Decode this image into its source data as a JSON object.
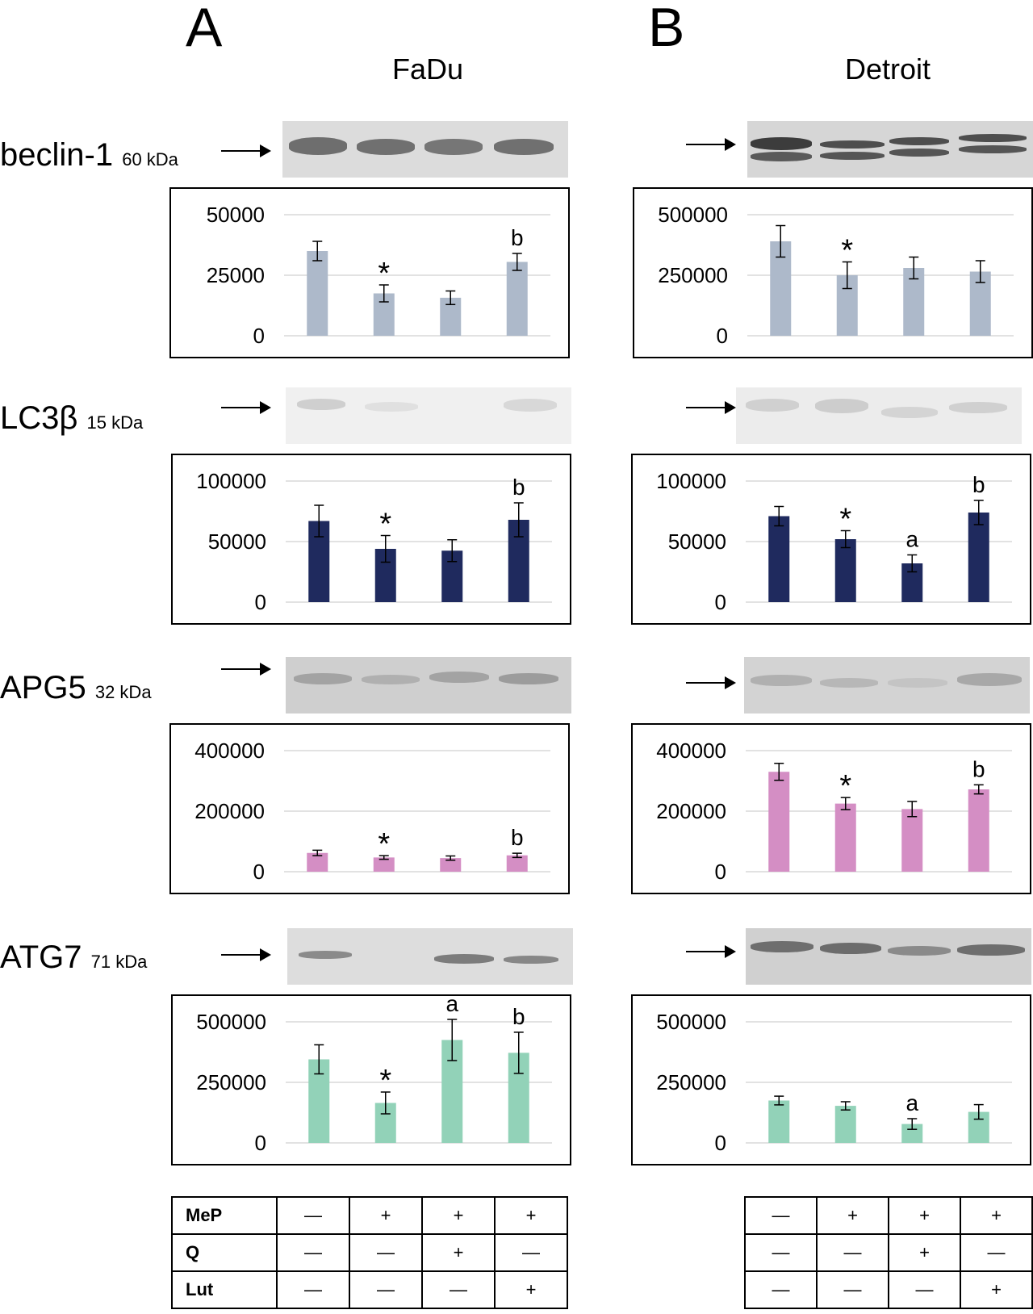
{
  "panels": [
    {
      "letter": "A",
      "cell_line": "FaDu"
    },
    {
      "letter": "B",
      "cell_line": "Detroit"
    }
  ],
  "proteins": [
    {
      "name": "beclin-1",
      "kda": "60 kDa"
    },
    {
      "name": "LC3β",
      "kda": "15 kDa"
    },
    {
      "name": "APG5",
      "kda": "32 kDa"
    },
    {
      "name": "ATG7",
      "kda": "71 kDa"
    }
  ],
  "colors": {
    "beclin-1": "#adb9ca",
    "LC3β": "#1f2a5e",
    "APG5": "#d48ec4",
    "ATG7": "#92d2b8",
    "gridline": "#d9d9d9",
    "errorbar": "#000000"
  },
  "treatment_table": {
    "row_labels": [
      "MeP",
      "Q",
      "Lut"
    ],
    "rows": [
      [
        "—",
        "+",
        "+",
        "+"
      ],
      [
        "—",
        "—",
        "+",
        "—"
      ],
      [
        "—",
        "—",
        "—",
        "+"
      ]
    ]
  },
  "chart_data": [
    {
      "id": "fadu-beclin",
      "type": "bar",
      "title": "beclin-1 FaDu",
      "categories": [
        "1",
        "2",
        "3",
        "4"
      ],
      "values": [
        35000,
        17500,
        15700,
        30500
      ],
      "errors": [
        4000,
        3500,
        2800,
        3500
      ],
      "annotations": [
        "",
        "*",
        "",
        "b"
      ],
      "ylim": [
        0,
        50000
      ],
      "yticks": [
        0,
        25000,
        50000
      ],
      "color_key": "beclin-1"
    },
    {
      "id": "detroit-beclin",
      "type": "bar",
      "title": "beclin-1 Detroit",
      "categories": [
        "1",
        "2",
        "3",
        "4"
      ],
      "values": [
        390000,
        250000,
        280000,
        265000
      ],
      "errors": [
        65000,
        55000,
        45000,
        45000
      ],
      "annotations": [
        "",
        "*",
        "",
        ""
      ],
      "ylim": [
        0,
        500000
      ],
      "yticks": [
        0,
        250000,
        500000
      ],
      "color_key": "beclin-1"
    },
    {
      "id": "fadu-lc3",
      "type": "bar",
      "title": "LC3β FaDu",
      "categories": [
        "1",
        "2",
        "3",
        "4"
      ],
      "values": [
        67000,
        44000,
        42500,
        68000
      ],
      "errors": [
        13000,
        11000,
        9000,
        14000
      ],
      "annotations": [
        "",
        "*",
        "",
        "b"
      ],
      "ylim": [
        0,
        100000
      ],
      "yticks": [
        0,
        50000,
        100000
      ],
      "color_key": "LC3β"
    },
    {
      "id": "detroit-lc3",
      "type": "bar",
      "title": "LC3β Detroit",
      "categories": [
        "1",
        "2",
        "3",
        "4"
      ],
      "values": [
        71000,
        52000,
        32000,
        74000
      ],
      "errors": [
        8000,
        7000,
        7000,
        10000
      ],
      "annotations": [
        "",
        "*",
        "a",
        "b"
      ],
      "ylim": [
        0,
        100000
      ],
      "yticks": [
        0,
        50000,
        100000
      ],
      "color_key": "LC3β"
    },
    {
      "id": "fadu-apg5",
      "type": "bar",
      "title": "APG5 FaDu",
      "categories": [
        "1",
        "2",
        "3",
        "4"
      ],
      "values": [
        62000,
        47000,
        45000,
        54000
      ],
      "errors": [
        9000,
        6000,
        7000,
        7000
      ],
      "annotations": [
        "",
        "*",
        "",
        "b"
      ],
      "ylim": [
        0,
        400000
      ],
      "yticks": [
        0,
        200000,
        400000
      ],
      "color_key": "APG5"
    },
    {
      "id": "detroit-apg5",
      "type": "bar",
      "title": "APG5 Detroit",
      "categories": [
        "1",
        "2",
        "3",
        "4"
      ],
      "values": [
        330000,
        225000,
        207000,
        272000
      ],
      "errors": [
        28000,
        20000,
        25000,
        15000
      ],
      "annotations": [
        "",
        "*",
        "",
        "b"
      ],
      "ylim": [
        0,
        400000
      ],
      "yticks": [
        0,
        200000,
        400000
      ],
      "color_key": "APG5"
    },
    {
      "id": "fadu-atg7",
      "type": "bar",
      "title": "ATG7 FaDu",
      "categories": [
        "1",
        "2",
        "3",
        "4"
      ],
      "values": [
        345000,
        165000,
        425000,
        372000
      ],
      "errors": [
        60000,
        45000,
        85000,
        85000
      ],
      "annotations": [
        "",
        "*",
        "a",
        "b"
      ],
      "ylim": [
        0,
        500000
      ],
      "yticks": [
        0,
        250000,
        500000
      ],
      "color_key": "ATG7"
    },
    {
      "id": "detroit-atg7",
      "type": "bar",
      "title": "ATG7 Detroit",
      "categories": [
        "1",
        "2",
        "3",
        "4"
      ],
      "values": [
        175000,
        153000,
        78000,
        128000
      ],
      "errors": [
        18000,
        17000,
        22000,
        30000
      ],
      "annotations": [
        "",
        "",
        "a",
        ""
      ],
      "ylim": [
        0,
        500000
      ],
      "yticks": [
        0,
        250000,
        500000
      ],
      "color_key": "ATG7"
    }
  ]
}
